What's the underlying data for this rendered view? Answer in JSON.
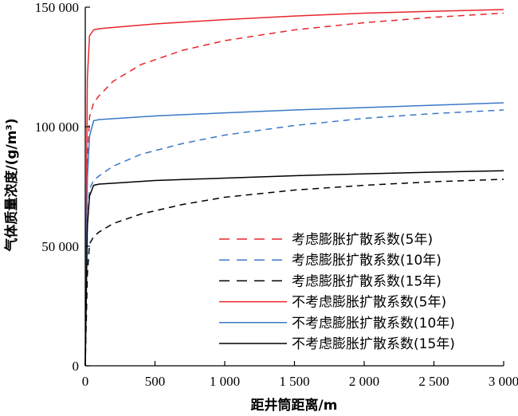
{
  "chart_data": {
    "type": "line",
    "xlabel": "距井筒距离/m",
    "ylabel": "气体质量浓度/(g/m³)",
    "xlim": [
      0,
      3000
    ],
    "ylim": [
      0,
      150000
    ],
    "x_ticks": [
      0,
      500,
      1000,
      1500,
      2000,
      2500,
      3000
    ],
    "x_tick_labels": [
      "0",
      "500",
      "1 000",
      "1 500",
      "2 000",
      "2 500",
      "3 000"
    ],
    "y_ticks": [
      0,
      50000,
      100000,
      150000
    ],
    "y_tick_labels": [
      "0",
      "50 000",
      "100 000",
      "150 000"
    ],
    "grid": false,
    "legend_position": "lower-right",
    "series": [
      {
        "name": "考虑膨胀扩散系数(5年)",
        "color": "#e8262b",
        "dash": true,
        "x": [
          0,
          15,
          30,
          60,
          100,
          200,
          400,
          700,
          1000,
          1500,
          2000,
          2500,
          3000
        ],
        "y": [
          0,
          85000,
          104000,
          110000,
          113000,
          119000,
          126000,
          132000,
          136000,
          140500,
          143500,
          145800,
          147500
        ]
      },
      {
        "name": "考虑膨胀扩散系数(10年)",
        "color": "#3b78c8",
        "dash": true,
        "x": [
          0,
          15,
          30,
          60,
          100,
          200,
          400,
          700,
          1000,
          1500,
          2000,
          2500,
          3000
        ],
        "y": [
          0,
          58000,
          74000,
          77500,
          79500,
          83500,
          88500,
          93000,
          96500,
          100500,
          103500,
          105500,
          107000
        ]
      },
      {
        "name": "考虑膨胀扩散系数(15年)",
        "color": "#000000",
        "dash": true,
        "x": [
          0,
          15,
          30,
          60,
          100,
          200,
          400,
          700,
          1000,
          1500,
          2000,
          2500,
          3000
        ],
        "y": [
          0,
          38000,
          51000,
          54000,
          56000,
          59500,
          63500,
          67500,
          70500,
          73500,
          75500,
          77000,
          78000
        ]
      },
      {
        "name": "不考虑膨胀扩散系数(5年)",
        "color": "#e8262b",
        "dash": false,
        "x": [
          0,
          15,
          30,
          60,
          100,
          500,
          1000,
          1500,
          2000,
          2500,
          3000
        ],
        "y": [
          0,
          120000,
          138000,
          140500,
          141000,
          143000,
          144800,
          146300,
          147500,
          148300,
          149000
        ]
      },
      {
        "name": "不考虑膨胀扩散系数(10年)",
        "color": "#3b78c8",
        "dash": false,
        "x": [
          0,
          15,
          30,
          60,
          100,
          500,
          1000,
          1500,
          2000,
          2500,
          3000
        ],
        "y": [
          0,
          78000,
          96000,
          102500,
          103000,
          104500,
          105800,
          107000,
          108000,
          109000,
          110000
        ]
      },
      {
        "name": "不考虑膨胀扩散系数(15年)",
        "color": "#000000",
        "dash": false,
        "x": [
          0,
          15,
          30,
          60,
          100,
          500,
          1000,
          1500,
          2000,
          2500,
          3000
        ],
        "y": [
          0,
          58000,
          71000,
          75500,
          76000,
          77500,
          78500,
          79500,
          80300,
          81000,
          81600
        ]
      }
    ]
  }
}
